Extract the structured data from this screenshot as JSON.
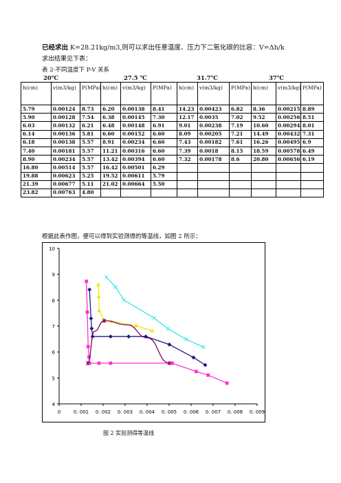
{
  "intro": {
    "line1_bold": "已经求出",
    "line1_text": " K=28.21kg/m3,则可以求出任意温度、压力下二氧化碳的比容：",
    "formula": "V=Δh/k",
    "line2": "求出结果见下表：",
    "caption": "表 2-不同温度下 P-V 关系"
  },
  "temperatures": [
    "20℃",
    "27.5 ℃",
    "31.7℃",
    "37℃"
  ],
  "table": {
    "headers": [
      "h(cm)",
      "v(m3/kg)",
      "P(MPa)",
      "h(cm)",
      "v(m3/kg)",
      "P(MPa)",
      "h(cm)",
      "v(m3/kg)",
      "P(MPa)",
      "h(cm)",
      "v(m3/kg)",
      "P(MPa)"
    ],
    "rows": [
      [
        "5.79",
        "0.00124",
        "8.73",
        "6.20",
        "0.00138",
        "8.41",
        "14.23",
        "0.00423",
        "6.82",
        "8.36",
        "0.00215",
        "8.89"
      ],
      [
        "5.90",
        "0.00128",
        "7.54",
        "6.38",
        "0.00145",
        "7.30",
        "12.17",
        "0.0035",
        "7.02",
        "9.52",
        "0.00256",
        "8.51"
      ],
      [
        "6.03",
        "0.00132",
        "6.21",
        "6.48",
        "0.00148",
        "6.91",
        "9.01",
        "0.00238",
        "7.19",
        "10.60",
        "0.00294",
        "8.01"
      ],
      [
        "6.14",
        "0.00136",
        "5.81",
        "6.60",
        "0.00152",
        "6.60",
        "8.09",
        "0.00205",
        "7.21",
        "14.49",
        "0.00432",
        "7.31"
      ],
      [
        "6.18",
        "0.00138",
        "5.57",
        "8.91",
        "0.00234",
        "6.60",
        "7.43",
        "0.00182",
        "7.61",
        "16.26",
        "0.00495",
        "6.9"
      ],
      [
        "7.40",
        "0.00181",
        "5.57",
        "11.21",
        "0.00316",
        "6.60",
        "7.39",
        "0.0018",
        "8.15",
        "18.59",
        "0.00578",
        "6.49"
      ],
      [
        "8.90",
        "0.00234",
        "5.57",
        "13.42",
        "0.00394",
        "6.60",
        "7.32",
        "0.00178",
        "8.6",
        "20.80",
        "0.00656",
        "6.19"
      ],
      [
        "16.80",
        "0.00514",
        "5.57",
        "16.42",
        "0.00501",
        "6.29",
        "",
        "",
        "",
        "",
        "",
        ""
      ],
      [
        "19.88",
        "0.00623",
        "5.25",
        "19.52",
        "0.00611",
        "5.79",
        "",
        "",
        "",
        "",
        "",
        ""
      ],
      [
        "21.39",
        "0.00677",
        "5.11",
        "21.02",
        "0.00664",
        "5.50",
        "",
        "",
        "",
        "",
        "",
        ""
      ],
      [
        "23.82",
        "0.00763",
        "4.80",
        "",
        "",
        "",
        "",
        "",
        "",
        "",
        "",
        ""
      ]
    ]
  },
  "after_text": "根据此表作图，便可以得到实验测得的等温线，如图 2 所示：",
  "figure_caption": "图 2 实验测得等温线",
  "chart_data": {
    "type": "scatter",
    "xlim": [
      0,
      0.009
    ],
    "ylim": [
      4,
      10
    ],
    "x_ticks": [
      "0",
      "0. 001",
      "0. 002",
      "0. 003",
      "0. 004",
      "0. 005",
      "0. 006",
      "0. 007",
      "0. 008",
      "0. 009"
    ],
    "y_ticks": [
      "4",
      "5",
      "6",
      "7",
      "8",
      "9",
      "10"
    ],
    "grid": false,
    "legend": "none",
    "series": [
      {
        "color": "#ff33cc",
        "marker": "square",
        "x": [
          0.00124,
          0.00128,
          0.00132,
          0.00136,
          0.00138,
          0.00181,
          0.00234,
          0.00514,
          0.00623,
          0.00677,
          0.00763
        ],
        "y": [
          8.73,
          7.54,
          6.21,
          5.81,
          5.57,
          5.57,
          5.57,
          5.57,
          5.25,
          5.11,
          4.8
        ]
      },
      {
        "color": "#1a1a80",
        "marker": "diamond",
        "x": [
          0.00138,
          0.00145,
          0.00148,
          0.00152,
          0.00234,
          0.00316,
          0.00394,
          0.00501,
          0.00611,
          0.00664
        ],
        "y": [
          8.41,
          7.3,
          6.91,
          6.6,
          6.6,
          6.6,
          6.6,
          6.29,
          5.79,
          5.5
        ]
      },
      {
        "color": "#f2e600",
        "marker": "triangle",
        "x": [
          0.00178,
          0.0018,
          0.00182,
          0.00205,
          0.00238,
          0.0035,
          0.00423
        ],
        "y": [
          8.6,
          8.15,
          7.61,
          7.21,
          7.19,
          7.02,
          6.82
        ]
      },
      {
        "color": "#33e6e6",
        "marker": "x",
        "x": [
          0.00215,
          0.00256,
          0.00294,
          0.00432,
          0.00495,
          0.00578,
          0.00656
        ],
        "y": [
          8.89,
          8.51,
          8.01,
          7.31,
          6.9,
          6.49,
          6.19
        ]
      },
      {
        "color": "#800060",
        "marker": "star",
        "x": [
          0.0013,
          0.0016,
          0.00205,
          0.0031,
          0.004,
          0.00501
        ],
        "y": [
          5.57,
          6.8,
          7.21,
          7.05,
          6.55,
          5.57
        ]
      }
    ]
  }
}
